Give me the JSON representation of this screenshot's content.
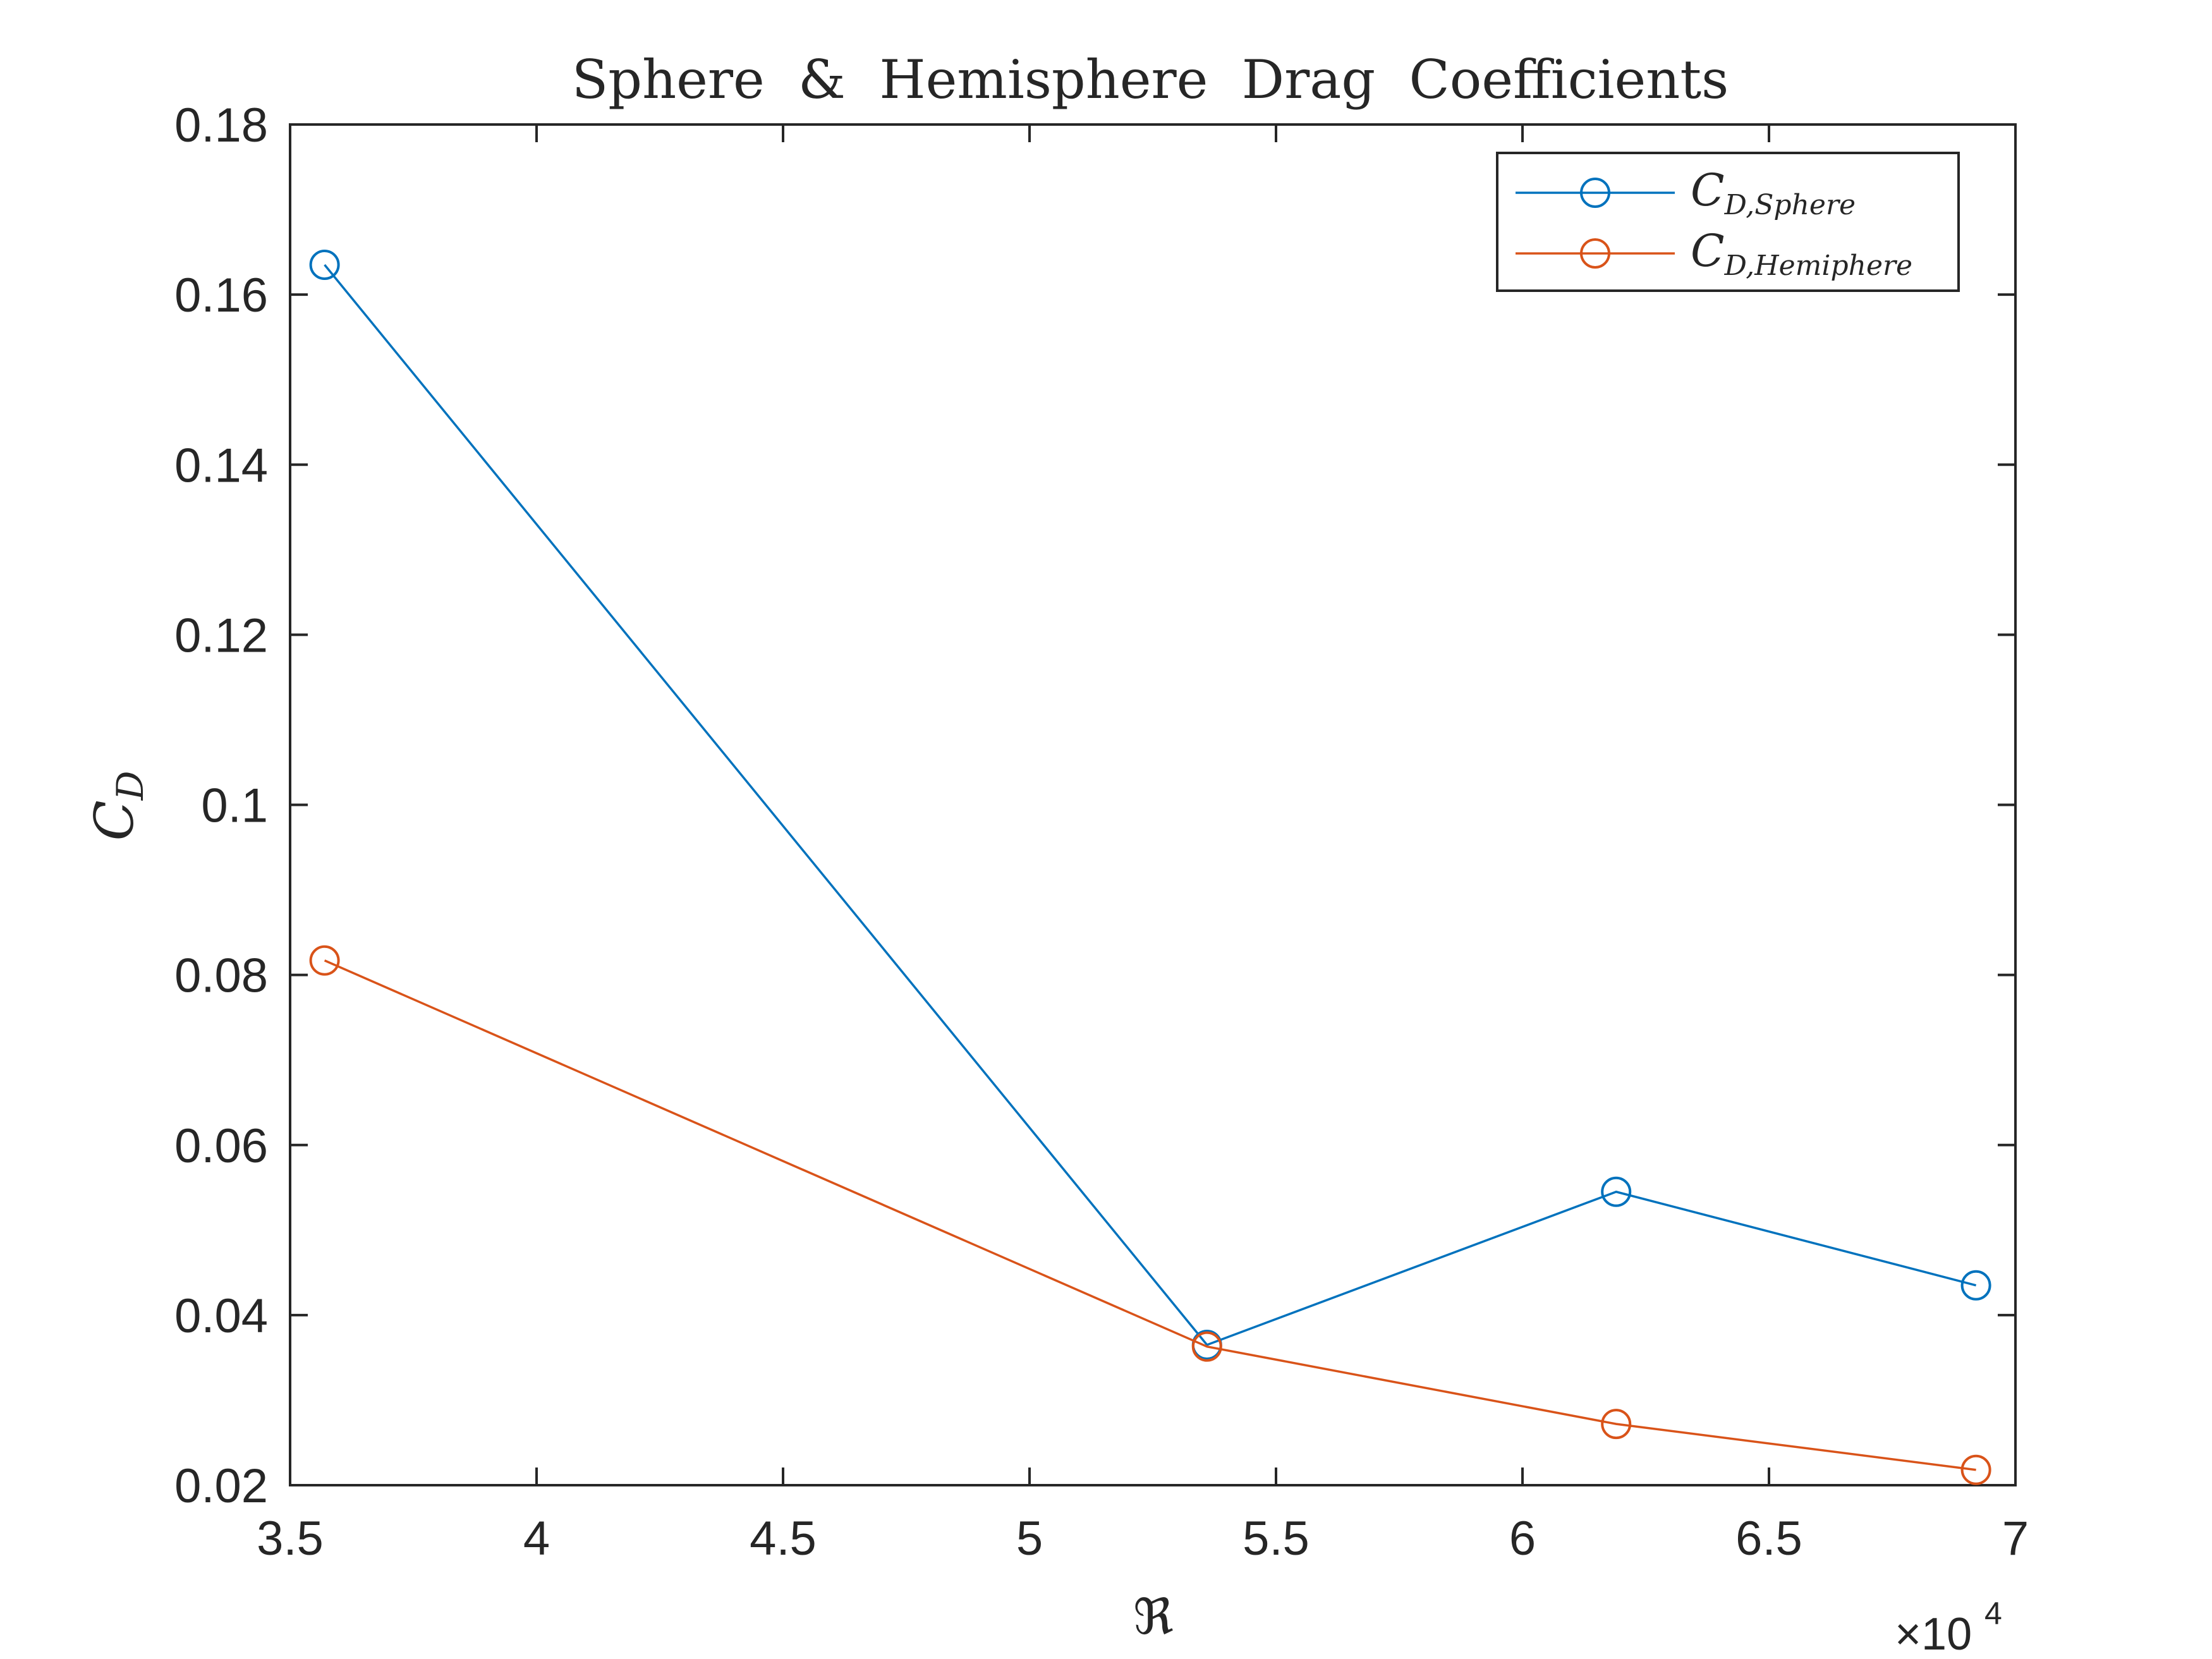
{
  "chart_data": {
    "type": "line",
    "title": "Sphere  &  Hemisphere  Drag  Coefficients",
    "xlabel": "ℜ",
    "ylabel": "C",
    "ylabel_sub": "D",
    "x_exponent": {
      "base": "×10",
      "power": "4"
    },
    "xlim": [
      3.5,
      7
    ],
    "ylim": [
      0.02,
      0.18
    ],
    "x_ticks": [
      "3.5",
      "4",
      "4.5",
      "5",
      "5.5",
      "6",
      "6.5",
      "7"
    ],
    "y_ticks": [
      "0.02",
      "0.04",
      "0.06",
      "0.08",
      "0.1",
      "0.12",
      "0.14",
      "0.16",
      "0.18"
    ],
    "grid": false,
    "legend_position": "top-right",
    "series": [
      {
        "name": "C",
        "name_sub": "D,Sphere",
        "color": "#0072BD",
        "marker": "circle-open",
        "x": [
          3.57,
          5.36,
          6.19,
          6.92
        ],
        "y": [
          0.1635,
          0.0365,
          0.0545,
          0.0435
        ]
      },
      {
        "name": "C",
        "name_sub": "D,Hemiphere",
        "color": "#D95319",
        "marker": "circle-open",
        "x": [
          3.57,
          5.36,
          6.19,
          6.92
        ],
        "y": [
          0.0817,
          0.0363,
          0.0272,
          0.0218
        ]
      }
    ]
  }
}
